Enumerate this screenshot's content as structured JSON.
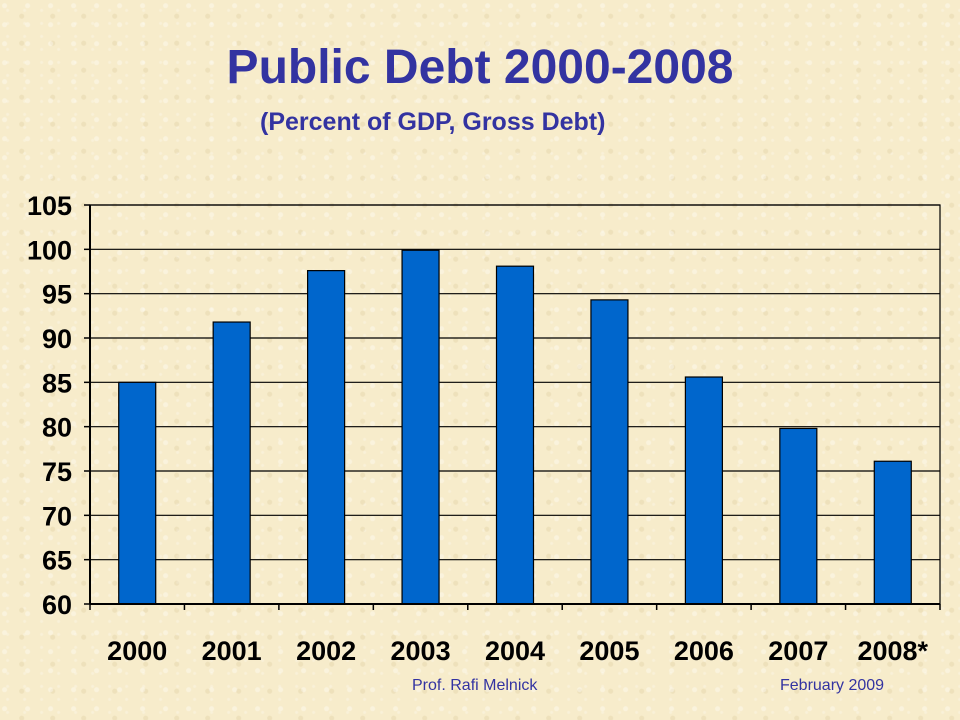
{
  "header": {
    "title": "Public Debt 2000-2008",
    "subtitle": "(Percent of GDP, Gross Debt)"
  },
  "footer": {
    "author": "Prof. Rafi Melnick",
    "date": "February 2009"
  },
  "colors": {
    "bar": "#0066cc",
    "bar_border": "#000000",
    "title": "#3333a1",
    "background": "#f7eccb"
  },
  "chart_data": {
    "type": "bar",
    "title": "Public Debt 2000-2008",
    "subtitle": "(Percent of GDP, Gross Debt)",
    "xlabel": "",
    "ylabel": "",
    "categories": [
      "2000",
      "2001",
      "2002",
      "2003",
      "2004",
      "2005",
      "2006",
      "2007",
      "2008*"
    ],
    "values": [
      85,
      91.8,
      97.6,
      99.9,
      98.1,
      94.3,
      85.6,
      79.8,
      76.1
    ],
    "ylim": [
      60,
      105
    ],
    "yticks": [
      60,
      65,
      70,
      75,
      80,
      85,
      90,
      95,
      100,
      105
    ],
    "grid": true,
    "legend": "none"
  }
}
